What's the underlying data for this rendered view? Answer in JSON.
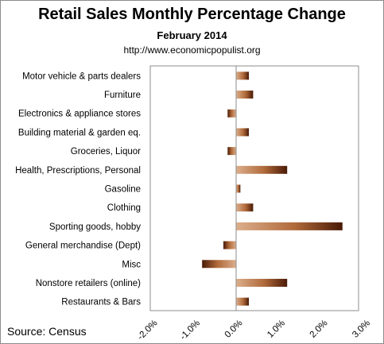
{
  "chart_data": {
    "type": "bar",
    "orientation": "horizontal",
    "title": "Retail Sales Monthly  Percentage Change",
    "subtitle": "February 2014",
    "url": "http://www.economicpopulist.org",
    "source": "Source:  Census",
    "categories": [
      "Motor vehicle & parts dealers",
      "Furniture",
      "Electronics & appliance stores",
      "Building material & garden eq.",
      "Groceries, Liquor",
      "Health, Prescriptions, Personal",
      "Gasoline",
      "Clothing",
      "Sporting goods, hobby",
      "General merchandise (Dept)",
      "Misc",
      "Nonstore retailers (online)",
      "Restaurants & Bars"
    ],
    "values": [
      0.3,
      0.4,
      -0.2,
      0.3,
      -0.2,
      1.2,
      0.1,
      0.4,
      2.5,
      -0.3,
      -0.8,
      1.2,
      0.3
    ],
    "xlim": [
      -2.0,
      3.0
    ],
    "xticks": [
      -2.0,
      -1.0,
      0.0,
      1.0,
      2.0,
      3.0
    ],
    "xtick_labels": [
      "-2.0%",
      "-1.0%",
      "0.0%",
      "1.0%",
      "2.0%",
      "3.0%"
    ],
    "xlabel": "",
    "ylabel": "",
    "grid": false,
    "legend": "none",
    "bar_colors": {
      "light": "#dcae8c",
      "mid": "#b06a3a",
      "dark": "#4a1a06"
    },
    "axis_color": "#8c8c8c"
  }
}
